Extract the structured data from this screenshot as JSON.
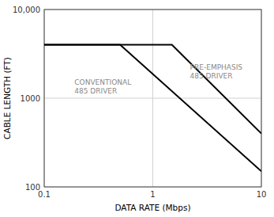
{
  "chart_data": {
    "type": "line",
    "log": true,
    "grid": true,
    "x_label": "DATA RATE (Mbps)",
    "y_label": "CABLE LENGTH (FT)",
    "xlim": [
      0.1,
      10
    ],
    "ylim": [
      100,
      10000
    ],
    "xticks": [
      0.1,
      1,
      10
    ],
    "yticks": [
      100,
      1000,
      {
        "value": 10000,
        "label": "10,000"
      }
    ],
    "series": [
      {
        "x": [
          0.1,
          0.5,
          10.0
        ],
        "values": [
          4000,
          4000,
          150
        ],
        "color": "#000000"
      },
      {
        "x": [
          0.1,
          1.5,
          10.0
        ],
        "values": [
          4000,
          4000,
          400
        ],
        "color": "#000000"
      }
    ],
    "annotations": [
      {
        "text": [
          "CONVENTIONAL",
          "485 DRIVER"
        ],
        "x": 0.19,
        "y": 1350
      },
      {
        "text": [
          "PRE-EMPHASIS",
          "485 DRIVER"
        ],
        "x": 2.2,
        "y": 2000
      }
    ]
  }
}
